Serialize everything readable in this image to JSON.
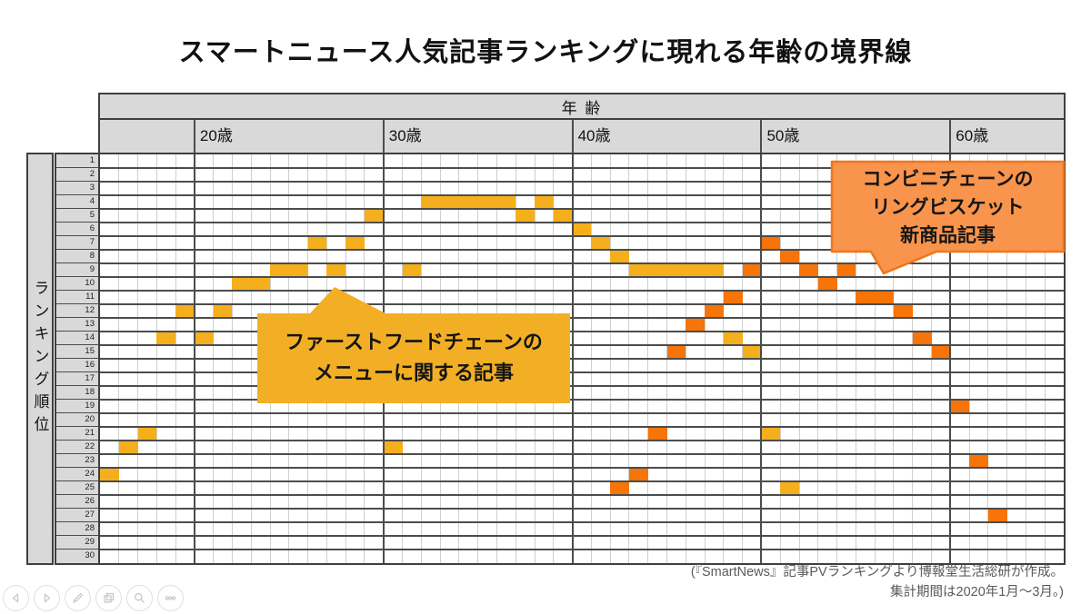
{
  "page": {
    "title": "スマートニュース人気記事ランキングに現れる年齢の境界線",
    "source_note_line1": "(『SmartNews』記事PVランキングより博報堂生活総研が作成。",
    "source_note_line2": "集計期間は2020年1月〜3月。)"
  },
  "colors": {
    "header_gray": "#D9D9D9",
    "grid_row_line": "#4C4C4C",
    "grid_col_line": "#CFCFCF",
    "outer_border": "#3F3F3F",
    "yellow_series": "#F5AF1D",
    "orange_series": "#F67408",
    "callout1_fill": "#F2AF25",
    "callout2_fill": "#F8944C",
    "callout2_border": "#F0761B",
    "source_text": "#5A5A5A"
  },
  "toolbar": {
    "buttons": [
      "previous-slide",
      "next-slide",
      "edit-pencil",
      "copy-slides",
      "zoom-magnifier",
      "more-options"
    ]
  },
  "chart_data": {
    "type": "heatmap",
    "title": "スマートニュース人気記事ランキングに現れる年齢の境界線",
    "age_axis_title": "年 齢",
    "ylabel": "ランキング順位",
    "age_min": 15,
    "age_max": 65,
    "rank_max": 30,
    "x_ticks": [
      {
        "age": 20,
        "label": "20歳"
      },
      {
        "age": 30,
        "label": "30歳"
      },
      {
        "age": 40,
        "label": "40歳"
      },
      {
        "age": 50,
        "label": "50歳"
      },
      {
        "age": 60,
        "label": "60歳"
      }
    ],
    "series": [
      {
        "name": "ファーストフードチェーンのメニューに関する記事",
        "color": "#F5AF1D",
        "points": [
          [
            15,
            24
          ],
          [
            16,
            22
          ],
          [
            17,
            21
          ],
          [
            18,
            14
          ],
          [
            19,
            12
          ],
          [
            20,
            14
          ],
          [
            21,
            12
          ],
          [
            22,
            10
          ],
          [
            23,
            10
          ],
          [
            24,
            9
          ],
          [
            25,
            9
          ],
          [
            26,
            7
          ],
          [
            27,
            9
          ],
          [
            28,
            7
          ],
          [
            29,
            5
          ],
          [
            30,
            22
          ],
          [
            31,
            9
          ],
          [
            32,
            4
          ],
          [
            33,
            4
          ],
          [
            34,
            4
          ],
          [
            35,
            4
          ],
          [
            36,
            4
          ],
          [
            37,
            5
          ],
          [
            38,
            4
          ],
          [
            39,
            5
          ],
          [
            40,
            6
          ],
          [
            41,
            7
          ],
          [
            42,
            8
          ],
          [
            43,
            9
          ],
          [
            44,
            9
          ],
          [
            45,
            9
          ],
          [
            46,
            9
          ],
          [
            47,
            9
          ],
          [
            48,
            14
          ],
          [
            49,
            15
          ],
          [
            50,
            21
          ],
          [
            51,
            25
          ]
        ]
      },
      {
        "name": "コンビニチェーンのリングビスケット新商品記事",
        "color": "#F67408",
        "points": [
          [
            42,
            25
          ],
          [
            43,
            24
          ],
          [
            44,
            21
          ],
          [
            45,
            15
          ],
          [
            46,
            13
          ],
          [
            47,
            12
          ],
          [
            48,
            11
          ],
          [
            49,
            9
          ],
          [
            50,
            7
          ],
          [
            51,
            8
          ],
          [
            52,
            9
          ],
          [
            53,
            10
          ],
          [
            54,
            9
          ],
          [
            55,
            11
          ],
          [
            56,
            11
          ],
          [
            57,
            12
          ],
          [
            58,
            14
          ],
          [
            59,
            15
          ],
          [
            60,
            19
          ],
          [
            61,
            23
          ],
          [
            62,
            27
          ]
        ]
      }
    ],
    "annotations": [
      {
        "series": "fastfood",
        "lines": [
          "ファーストフードチェーンの",
          "メニューに関する記事"
        ],
        "fill": "#F2AF25"
      },
      {
        "series": "convenience",
        "lines": [
          "コンビニチェーンの",
          "リングビスケット",
          "新商品記事"
        ],
        "fill": "#F8944C",
        "border": "#F0761B"
      }
    ]
  }
}
